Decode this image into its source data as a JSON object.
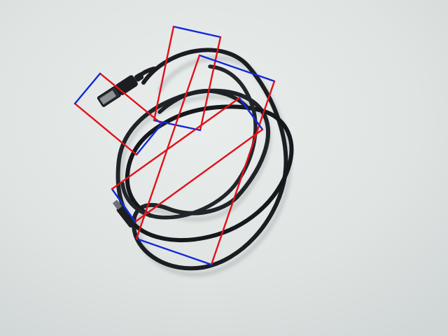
{
  "image": {
    "description": "",
    "background_color": "#dfe4e3"
  },
  "colors": {
    "cable": "#1b1d22",
    "box_long_edge": "#e0121a",
    "box_short_edge": "#1428d8"
  },
  "objects": [
    {
      "name": "usb-cable",
      "label": ""
    }
  ],
  "annotations": {
    "count": 5,
    "legend": ""
  }
}
